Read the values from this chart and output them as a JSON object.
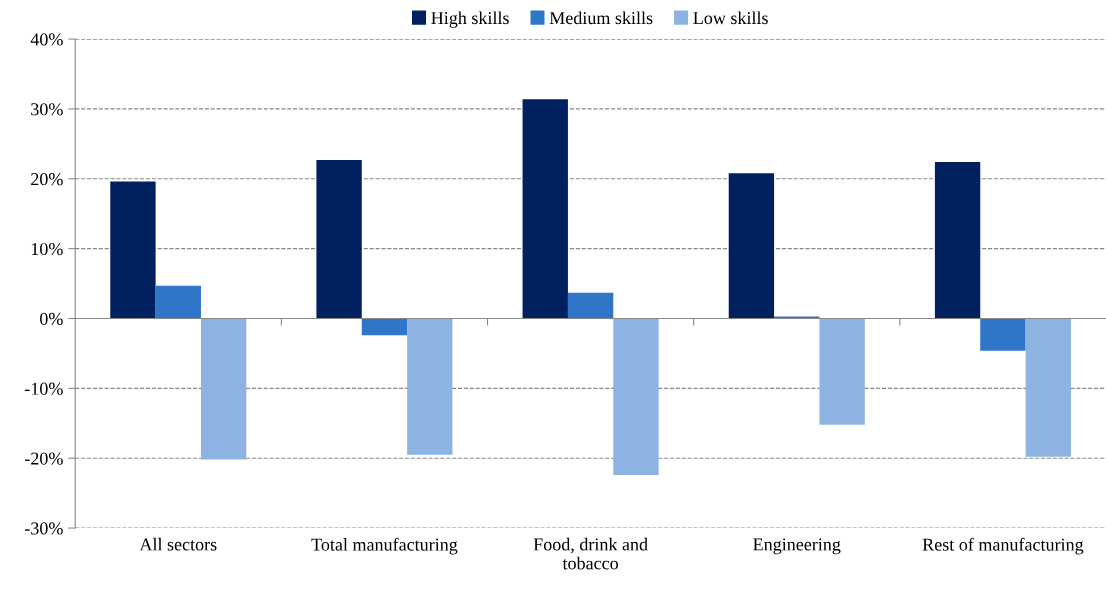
{
  "chart_data": {
    "type": "bar",
    "categories": [
      "All sectors",
      "Total manufacturing",
      "Food, drink and\ntobacco",
      "Engineering",
      "Rest of manufacturing"
    ],
    "series": [
      {
        "name": "High skills",
        "color": "#002060",
        "values": [
          19.6,
          22.7,
          31.4,
          20.8,
          22.4
        ]
      },
      {
        "name": "Medium skills",
        "color": "#3076c8",
        "values": [
          4.7,
          -2.4,
          3.7,
          0.3,
          -4.6
        ]
      },
      {
        "name": "Low skills",
        "color": "#8db3e2",
        "values": [
          -20.2,
          -19.5,
          -22.4,
          -15.2,
          -19.8
        ]
      }
    ],
    "ylim": [
      -30,
      40
    ],
    "yticks": [
      {
        "value": -30,
        "label": "-30%"
      },
      {
        "value": -20,
        "label": "-20%"
      },
      {
        "value": -10,
        "label": "-10%"
      },
      {
        "value": 0,
        "label": "0%"
      },
      {
        "value": 10,
        "label": "10%"
      },
      {
        "value": 20,
        "label": "20%"
      },
      {
        "value": 30,
        "label": "30%"
      },
      {
        "value": 40,
        "label": "40%"
      }
    ],
    "grid": "y",
    "legend": "top"
  }
}
